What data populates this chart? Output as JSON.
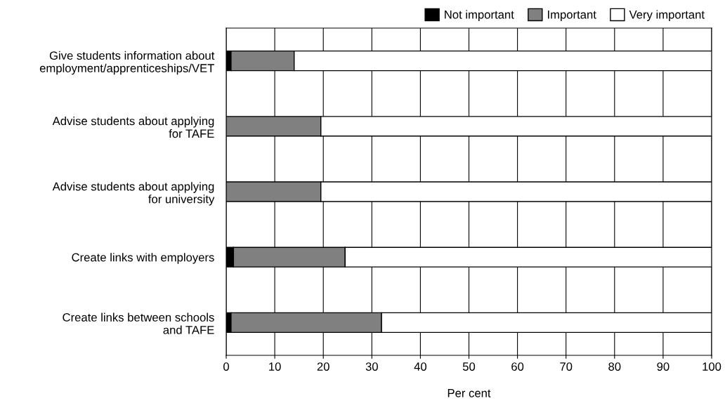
{
  "chart_data": {
    "type": "bar",
    "orientation": "horizontal",
    "stacked": true,
    "categories": [
      "Give students information about\nemployment/apprenticeships/VET",
      "Advise students about applying\nfor TAFE",
      "Advise students about applying\nfor university",
      "Create links with employers",
      "Create links between schools\nand TAFE"
    ],
    "series": [
      {
        "name": "Not important",
        "color": "#000000",
        "values": [
          1,
          0,
          0,
          1.5,
          1
        ]
      },
      {
        "name": "Important",
        "color": "#808080",
        "values": [
          13,
          19.5,
          19.5,
          23,
          31
        ]
      },
      {
        "name": "Very important",
        "color": "#ffffff",
        "values": [
          86,
          80.5,
          80.5,
          75.5,
          68
        ]
      }
    ],
    "xlabel": "Per cent",
    "xlim": [
      0,
      100
    ],
    "xticks": [
      0,
      10,
      20,
      30,
      40,
      50,
      60,
      70,
      80,
      90,
      100
    ],
    "grid": "x",
    "legend": "top right"
  }
}
